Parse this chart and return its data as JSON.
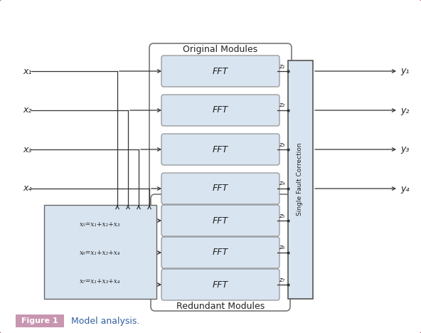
{
  "fig_width": 5.92,
  "fig_height": 4.68,
  "bg_color": "#ffffff",
  "border_color": "#b05878",
  "fft_box_color": "#d8e4f0",
  "fft_box_edge": "#888888",
  "combo_box_color": "#d8e4f0",
  "combo_box_edge": "#666666",
  "sfc_box_color": "#d8e4f0",
  "sfc_box_edge": "#555555",
  "outer_group_edge": "#777777",
  "line_color": "#333333",
  "text_color": "#222222",
  "caption_color": "#3060a0",
  "title_original": "Original Modules",
  "title_redundant": "Redundant Modules",
  "sfc_label": "Single Fault Correction",
  "inputs": [
    "x₁",
    "x₂",
    "x₃",
    "x₄"
  ],
  "outputs": [
    "y₁",
    "y₂",
    "y₃",
    "y₄"
  ],
  "z_labels_orig": [
    "z₁",
    "z₂",
    "z₃",
    "z₄"
  ],
  "z_labels_redun": [
    "z₅",
    "z₆",
    "z₇"
  ],
  "combo_labels": [
    "x₅=x₁+x₂+x₃",
    "x₆=x₁+x₂+x₄",
    "x₇=x₁+x₃+x₄"
  ],
  "figure_label": "Figure 1",
  "figure_caption": "Model analysis.",
  "figure_label_bg": "#c896b0",
  "figure_label_color": "#ffffff"
}
